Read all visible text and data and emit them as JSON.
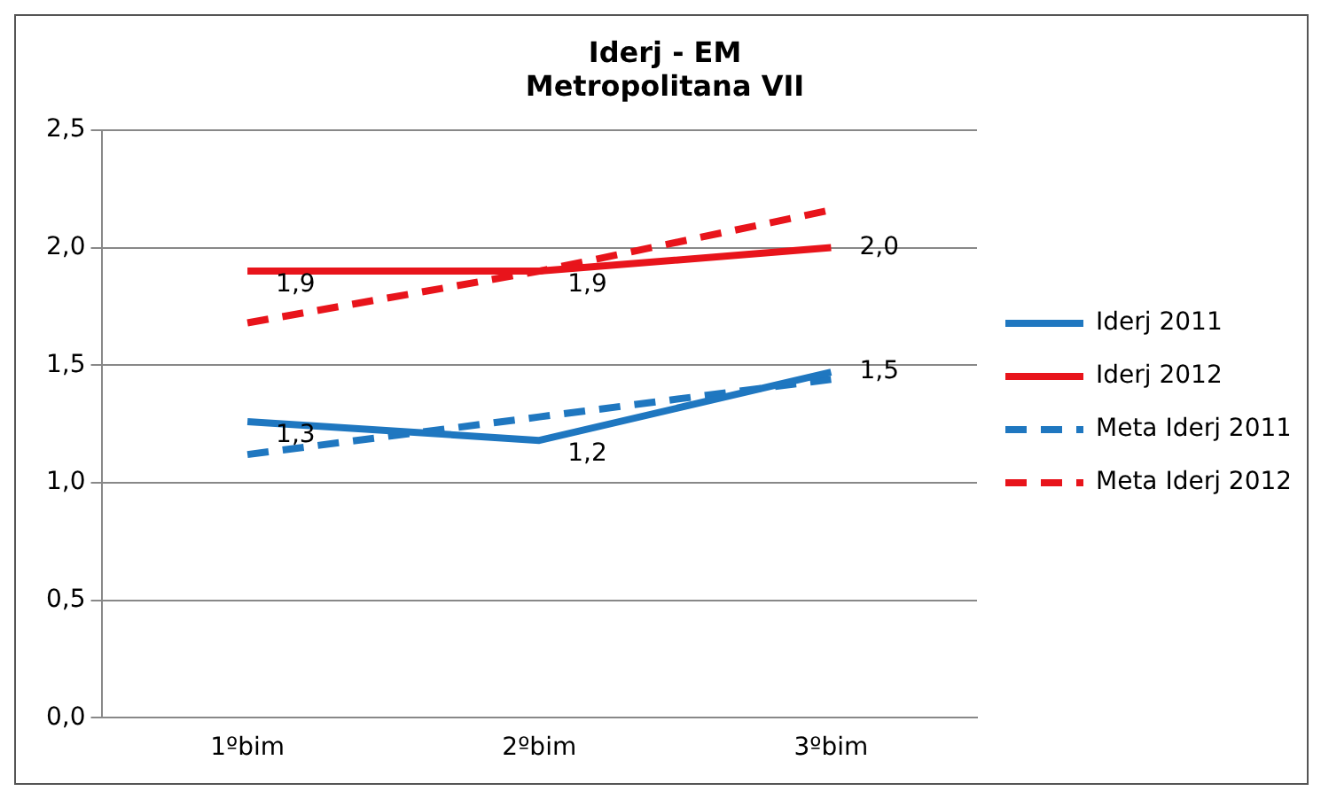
{
  "chart_data": {
    "type": "line",
    "title": [
      "Iderj - EM",
      "Metropolitana VII"
    ],
    "categories": [
      "1ºbim",
      "2ºbim",
      "3ºbim"
    ],
    "series": [
      {
        "name": "Iderj 2011",
        "color": "#1f77c0",
        "values": [
          1.26,
          1.18,
          1.47
        ],
        "value_labels": [
          "1,3",
          "1,2",
          "1,5"
        ],
        "line_style": "solid"
      },
      {
        "name": "Iderj 2012",
        "color": "#e8141b",
        "values": [
          1.9,
          1.9,
          2.0
        ],
        "value_labels": [
          "1,9",
          "1,9",
          "2,0"
        ],
        "line_style": "solid"
      },
      {
        "name": "Meta Iderj 2011",
        "color": "#1f77c0",
        "values": [
          1.12,
          1.28,
          1.44
        ],
        "line_style": "dashed"
      },
      {
        "name": "Meta Iderj 2012",
        "color": "#e8141b",
        "values": [
          1.68,
          1.9,
          2.16
        ],
        "line_style": "dashed"
      }
    ],
    "ylim": [
      0,
      2.5
    ],
    "yticks": [
      {
        "value": 0,
        "label": "0,0"
      },
      {
        "value": 0.5,
        "label": "0,5"
      },
      {
        "value": 1,
        "label": "1,0"
      },
      {
        "value": 1.5,
        "label": "1,5"
      },
      {
        "value": 2,
        "label": "2,0"
      },
      {
        "value": 2.5,
        "label": "2,5"
      }
    ],
    "grid": "y",
    "legend": "right",
    "marker": "none"
  }
}
